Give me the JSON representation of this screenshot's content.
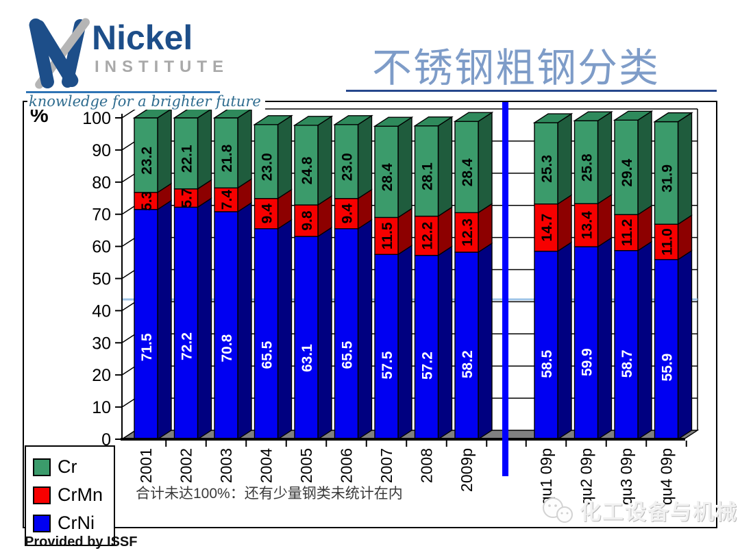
{
  "header": {
    "logo_name": "Nickel",
    "logo_subname": "INSTITUTE",
    "tagline": "knowledge for a brighter future",
    "title": "不锈钢粗钢分类"
  },
  "y_axis": {
    "unit": "%",
    "min": 0,
    "max": 100,
    "step": 10
  },
  "chart_data": {
    "type": "bar",
    "stacked": true,
    "title": "不锈钢粗钢分类",
    "ylabel": "%",
    "ylim": [
      0,
      100
    ],
    "ytick_step": 10,
    "grid": true,
    "legend_position": "bottom-left",
    "legend_order": [
      "Cr",
      "CrMn",
      "CrNi"
    ],
    "divider_after": "2009p",
    "divider_color": "#0000ff",
    "reference_line": {
      "value": 43.5,
      "color": "#9dc3e6"
    },
    "categories": [
      "2001",
      "2002",
      "2003",
      "2004",
      "2005",
      "2006",
      "2007",
      "2008",
      "2009p",
      "qu1 09p",
      "qu2 09p",
      "qu3 09p",
      "qu4 09p"
    ],
    "series": [
      {
        "name": "CrNi",
        "color": "#0000f2",
        "side_color": "#000080",
        "label_color": "#ffffff",
        "values": [
          71.5,
          72.2,
          70.8,
          65.5,
          63.1,
          65.5,
          57.5,
          57.2,
          58.2,
          58.5,
          59.9,
          58.7,
          55.9
        ]
      },
      {
        "name": "CrMn",
        "color": "#f70000",
        "side_color": "#8d0000",
        "label_color": "#000000",
        "values": [
          5.3,
          5.7,
          7.4,
          9.4,
          9.8,
          9.4,
          11.5,
          12.2,
          12.3,
          14.7,
          13.4,
          11.2,
          11.0
        ]
      },
      {
        "name": "Cr",
        "color": "#3b9b6b",
        "side_color": "#1f5c3d",
        "top_color": "#2f8a5c",
        "label_color": "#000000",
        "values": [
          23.2,
          22.1,
          21.8,
          23.0,
          24.8,
          23.0,
          28.4,
          28.1,
          28.4,
          25.3,
          25.8,
          29.4,
          31.9
        ]
      }
    ]
  },
  "footnote": "合计未达100%：还有少量钢类未统计在内",
  "provided_by": "Provided by ISSF",
  "watermark": "化工设备与机械"
}
